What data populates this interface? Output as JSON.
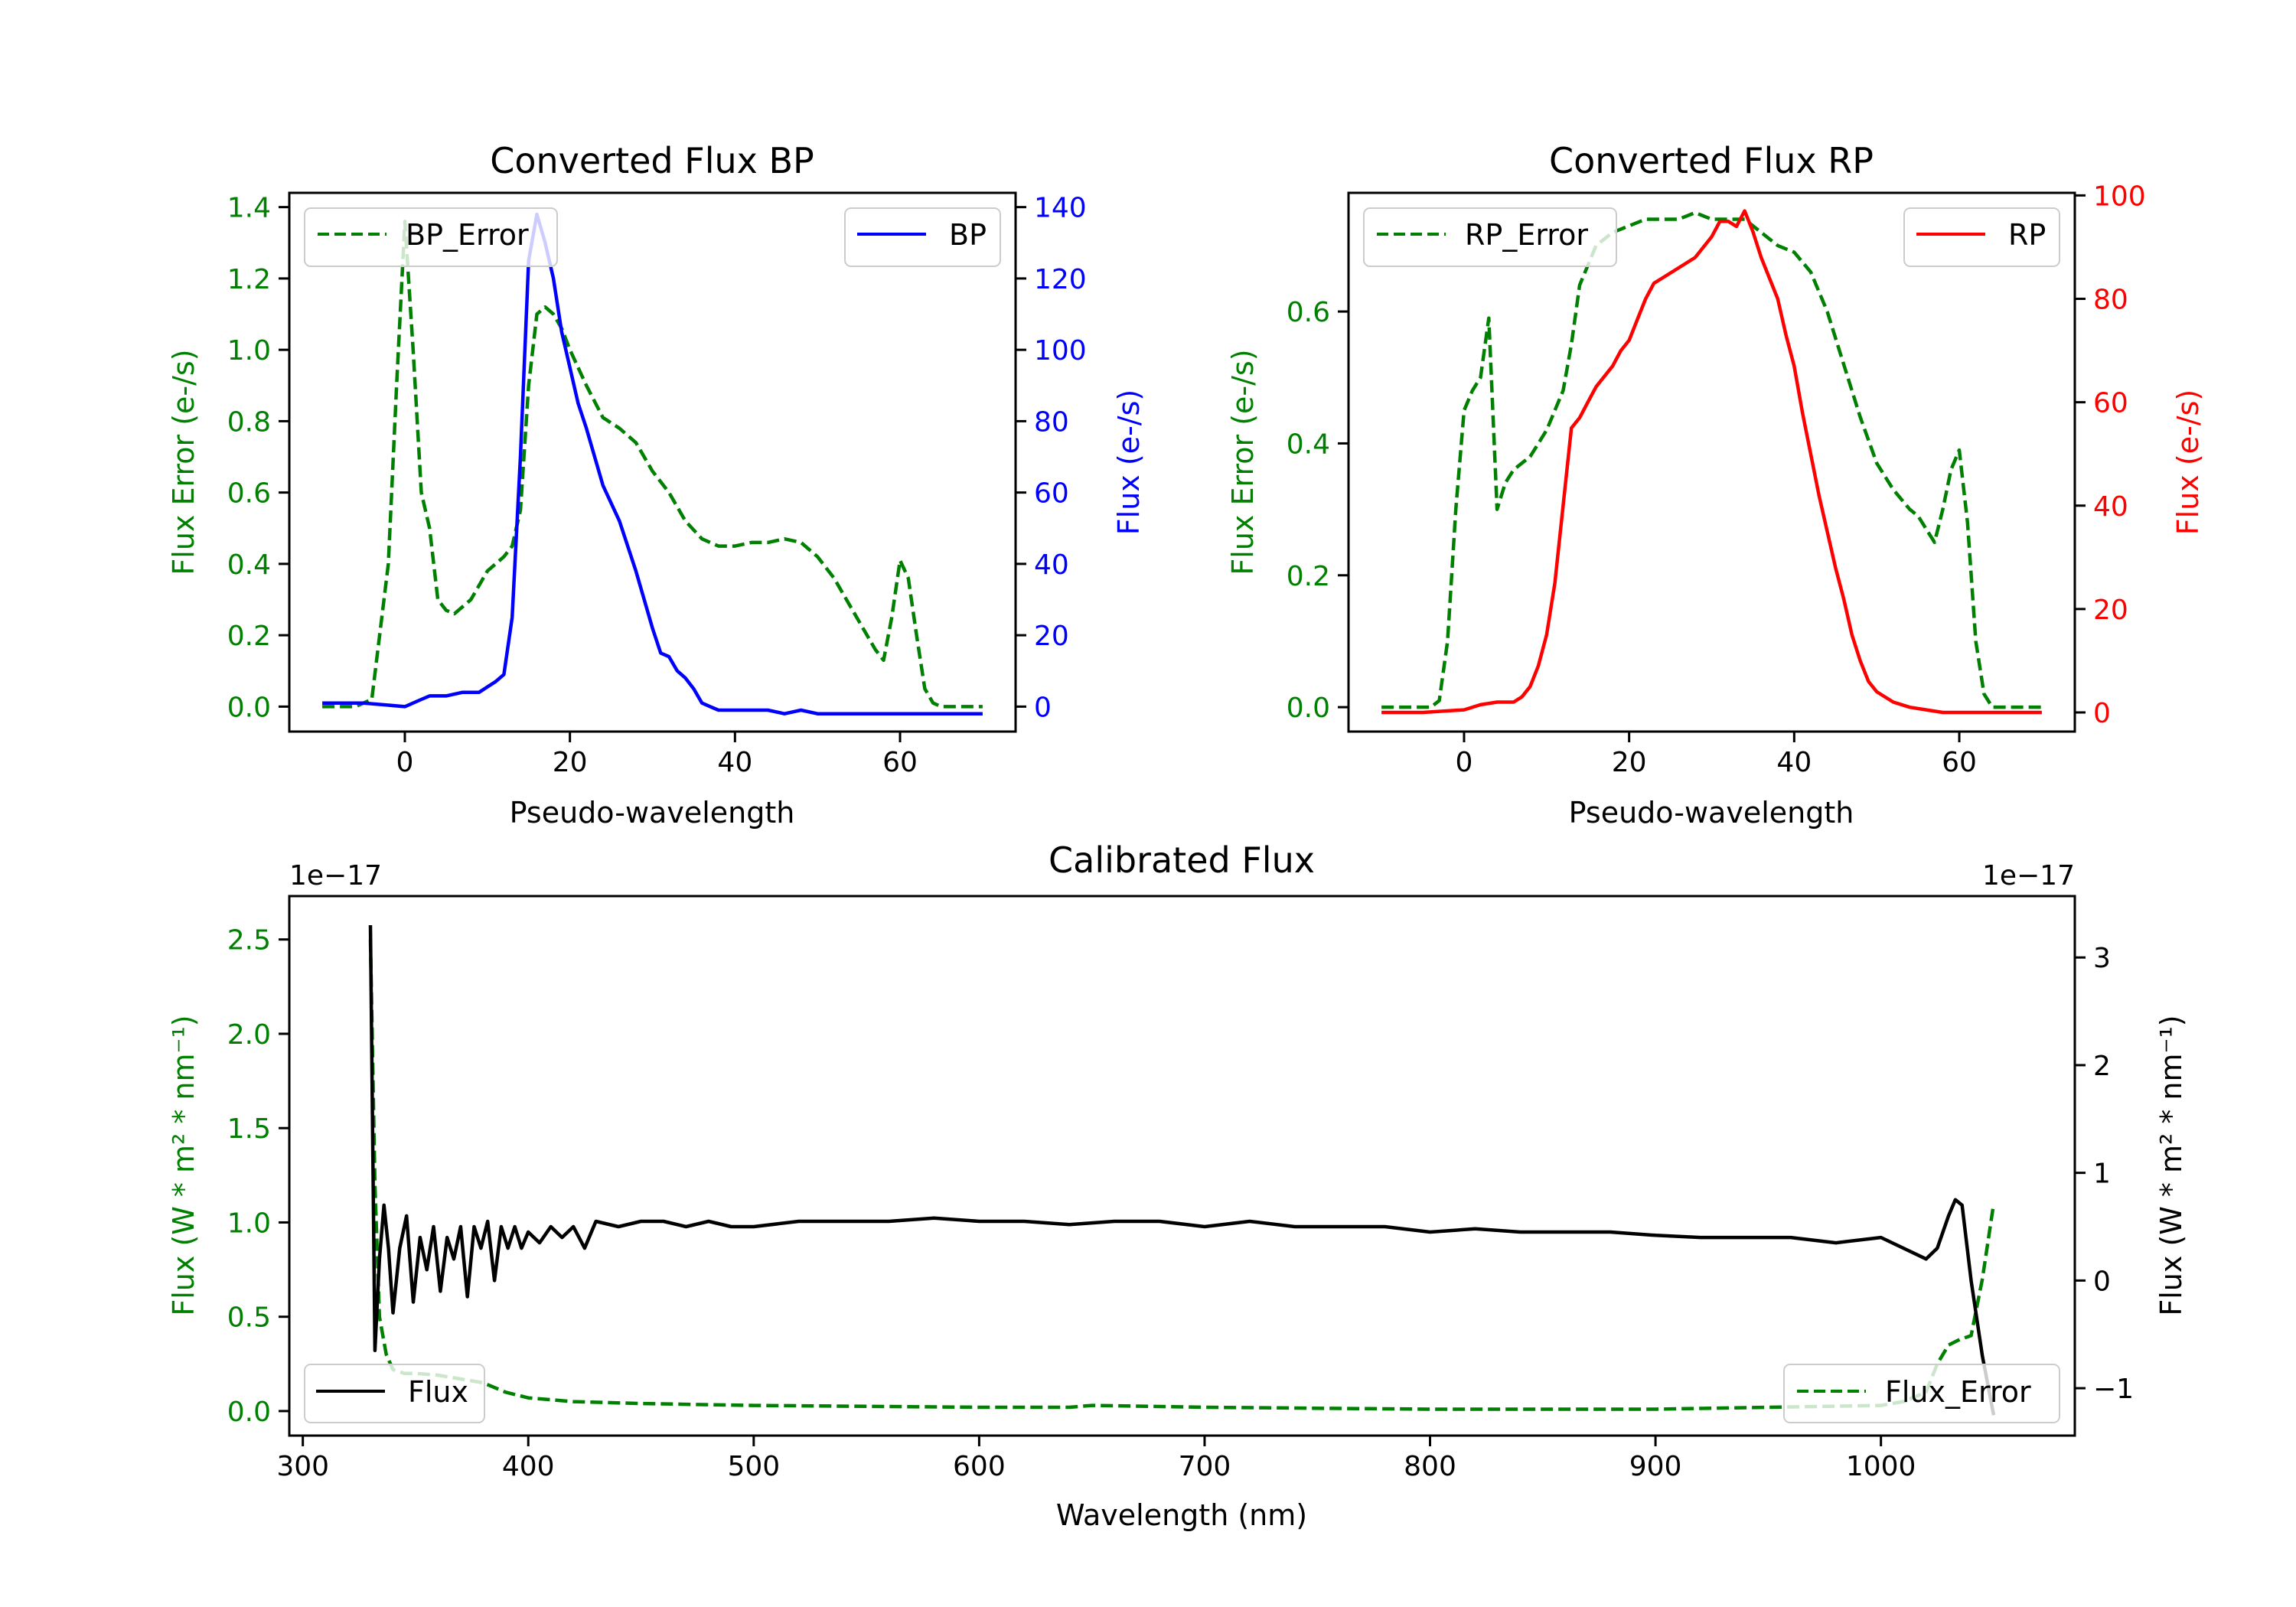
{
  "chart_data": [
    {
      "type": "line",
      "title": "Converted Flux BP",
      "xlabel": "Pseudo-wavelength",
      "ylabel_left": "Flux Error (e-/s)",
      "ylabel_right": "Flux (e-/s)",
      "xlim": [
        -14,
        74
      ],
      "ylim_left": [
        -0.07,
        1.44
      ],
      "ylim_right": [
        -7,
        144
      ],
      "xticks": [
        "0",
        "20",
        "40",
        "60"
      ],
      "xtick_values": [
        0,
        20,
        40,
        60
      ],
      "yticks_left": [
        "0.0",
        "0.2",
        "0.4",
        "0.6",
        "0.8",
        "1.0",
        "1.2",
        "1.4"
      ],
      "yticks_left_values": [
        0,
        0.2,
        0.4,
        0.6,
        0.8,
        1.0,
        1.2,
        1.4
      ],
      "yticks_right": [
        "0",
        "20",
        "40",
        "60",
        "80",
        "100",
        "120",
        "140"
      ],
      "yticks_right_values": [
        0,
        20,
        40,
        60,
        80,
        100,
        120,
        140
      ],
      "left_axis_color": "#008000",
      "right_axis_color": "#0000ff",
      "legend_left": "BP_Error",
      "legend_right": "BP",
      "series": [
        {
          "name": "BP_Error",
          "axis": "left",
          "color": "#008000",
          "dash": true,
          "x": [
            -10,
            -6,
            -4,
            -2,
            -1,
            0,
            1,
            2,
            3,
            4,
            5,
            6,
            8,
            10,
            12,
            13,
            14,
            15,
            16,
            17,
            18,
            19,
            20,
            22,
            24,
            26,
            28,
            30,
            32,
            34,
            36,
            38,
            40,
            42,
            44,
            46,
            48,
            50,
            52,
            54,
            56,
            57,
            58,
            59,
            60,
            61,
            62,
            63,
            64,
            65,
            67,
            70
          ],
          "y": [
            0,
            0,
            0.02,
            0.4,
            0.9,
            1.36,
            1.0,
            0.6,
            0.5,
            0.3,
            0.27,
            0.26,
            0.3,
            0.38,
            0.42,
            0.45,
            0.55,
            0.9,
            1.1,
            1.12,
            1.1,
            1.06,
            1.0,
            0.9,
            0.81,
            0.78,
            0.74,
            0.66,
            0.6,
            0.52,
            0.47,
            0.45,
            0.45,
            0.46,
            0.46,
            0.47,
            0.46,
            0.42,
            0.36,
            0.28,
            0.2,
            0.16,
            0.13,
            0.25,
            0.41,
            0.36,
            0.2,
            0.05,
            0.01,
            0,
            0,
            0
          ]
        },
        {
          "name": "BP",
          "axis": "right",
          "color": "#0000ff",
          "dash": false,
          "x": [
            -10,
            -5,
            0,
            2,
            3,
            5,
            7,
            9,
            11,
            12,
            13,
            14,
            15,
            16,
            17,
            18,
            19,
            20,
            21,
            22,
            23,
            24,
            26,
            28,
            30,
            31,
            32,
            33,
            34,
            35,
            36,
            37,
            38,
            40,
            42,
            44,
            46,
            48,
            50,
            52,
            55,
            58,
            60,
            65,
            70
          ],
          "y": [
            1,
            1,
            0,
            2,
            3,
            3,
            4,
            4,
            7,
            9,
            25,
            70,
            125,
            138,
            130,
            120,
            105,
            95,
            85,
            78,
            70,
            62,
            52,
            38,
            22,
            15,
            14,
            10,
            8,
            5,
            1,
            0,
            -1,
            -1,
            -1,
            -1,
            -2,
            -1,
            -2,
            -2,
            -2,
            -2,
            -2,
            -2,
            -2
          ]
        }
      ]
    },
    {
      "type": "line",
      "title": "Converted Flux RP",
      "xlabel": "Pseudo-wavelength",
      "ylabel_left": "Flux Error (e-/s)",
      "ylabel_right": "Flux (e-/s)",
      "xlim": [
        -14,
        74
      ],
      "ylim_left": [
        -0.037,
        0.78
      ],
      "ylim_right": [
        -3.7,
        100.5
      ],
      "xticks": [
        "0",
        "20",
        "40",
        "60"
      ],
      "xtick_values": [
        0,
        20,
        40,
        60
      ],
      "yticks_left": [
        "0.0",
        "0.2",
        "0.4",
        "0.6"
      ],
      "yticks_left_values": [
        0,
        0.2,
        0.4,
        0.6
      ],
      "yticks_right": [
        "0",
        "20",
        "40",
        "60",
        "80",
        "100"
      ],
      "yticks_right_values": [
        0,
        20,
        40,
        60,
        80,
        100
      ],
      "left_axis_color": "#008000",
      "right_axis_color": "#ff0000",
      "legend_left": "RP_Error",
      "legend_right": "RP",
      "series": [
        {
          "name": "RP_Error",
          "axis": "left",
          "color": "#008000",
          "dash": true,
          "x": [
            -10,
            -4,
            -3,
            -2,
            -1,
            0,
            1,
            2,
            3,
            4,
            5,
            6,
            8,
            10,
            12,
            13,
            14,
            16,
            18,
            20,
            22,
            24,
            26,
            28,
            30,
            32,
            34,
            36,
            38,
            40,
            42,
            44,
            46,
            48,
            50,
            52,
            54,
            55,
            56,
            57,
            58,
            59,
            60,
            61,
            62,
            63,
            64,
            65,
            70
          ],
          "y": [
            0,
            0,
            0.01,
            0.1,
            0.3,
            0.45,
            0.48,
            0.5,
            0.59,
            0.3,
            0.34,
            0.36,
            0.38,
            0.42,
            0.48,
            0.55,
            0.64,
            0.7,
            0.72,
            0.73,
            0.74,
            0.74,
            0.74,
            0.75,
            0.74,
            0.74,
            0.74,
            0.72,
            0.7,
            0.69,
            0.66,
            0.6,
            0.52,
            0.44,
            0.37,
            0.33,
            0.3,
            0.29,
            0.27,
            0.25,
            0.3,
            0.36,
            0.39,
            0.28,
            0.1,
            0.02,
            0,
            0,
            0
          ]
        },
        {
          "name": "RP",
          "axis": "right",
          "color": "#ff0000",
          "dash": false,
          "x": [
            -10,
            -5,
            0,
            2,
            4,
            6,
            7,
            8,
            9,
            10,
            11,
            12,
            13,
            14,
            15,
            16,
            17,
            18,
            19,
            20,
            21,
            22,
            23,
            24,
            26,
            28,
            30,
            31,
            32,
            33,
            34,
            35,
            36,
            37,
            38,
            39,
            40,
            41,
            42,
            43,
            44,
            45,
            46,
            47,
            48,
            49,
            50,
            52,
            54,
            56,
            58,
            60,
            65,
            70
          ],
          "y": [
            0,
            0,
            0.5,
            1.5,
            2,
            2,
            3,
            5,
            9,
            15,
            25,
            40,
            55,
            57,
            60,
            63,
            65,
            67,
            70,
            72,
            76,
            80,
            83,
            84,
            86,
            88,
            92,
            95,
            95,
            94,
            97,
            93,
            88,
            84,
            80,
            73,
            67,
            58,
            50,
            42,
            35,
            28,
            22,
            15,
            10,
            6,
            4,
            2,
            1,
            0.5,
            0,
            0,
            0,
            0
          ]
        }
      ]
    },
    {
      "type": "line",
      "title": "Calibrated Flux",
      "xlabel": "Wavelength (nm)",
      "ylabel_left": "Flux (W * m² * nm⁻¹)",
      "ylabel_right": "Flux (W * m² * nm⁻¹)",
      "offset_left": "1e−17",
      "offset_right": "1e−17",
      "xlim": [
        294,
        1086
      ],
      "ylim_left": [
        -0.13,
        2.73
      ],
      "ylim_right": [
        -1.44,
        3.57
      ],
      "xticks": [
        "300",
        "400",
        "500",
        "600",
        "700",
        "800",
        "900",
        "1000"
      ],
      "xtick_values": [
        300,
        400,
        500,
        600,
        700,
        800,
        900,
        1000
      ],
      "yticks_left": [
        "0.0",
        "0.5",
        "1.0",
        "1.5",
        "2.0",
        "2.5"
      ],
      "yticks_left_values": [
        0,
        0.5,
        1.0,
        1.5,
        2.0,
        2.5
      ],
      "yticks_right": [
        "−1",
        "0",
        "1",
        "2",
        "3"
      ],
      "yticks_right_values": [
        -1,
        0,
        1,
        2,
        3
      ],
      "left_axis_color": "#008000",
      "right_axis_color": "#000000",
      "legend_left": "Flux",
      "legend_right": "Flux_Error",
      "series": [
        {
          "name": "Flux_Error",
          "axis": "left",
          "color": "#008000",
          "dash": true,
          "x": [
            330,
            332,
            334,
            337,
            340,
            345,
            350,
            360,
            370,
            380,
            390,
            400,
            420,
            450,
            500,
            600,
            640,
            650,
            700,
            800,
            900,
            950,
            1000,
            1010,
            1020,
            1025,
            1030,
            1035,
            1040,
            1045,
            1050
          ],
          "y": [
            2.5,
            1.2,
            0.5,
            0.3,
            0.22,
            0.2,
            0.2,
            0.19,
            0.17,
            0.15,
            0.1,
            0.07,
            0.05,
            0.04,
            0.03,
            0.02,
            0.02,
            0.03,
            0.02,
            0.01,
            0.01,
            0.02,
            0.03,
            0.05,
            0.1,
            0.25,
            0.35,
            0.38,
            0.4,
            0.7,
            1.1
          ]
        },
        {
          "name": "Flux",
          "axis": "right",
          "color": "#000000",
          "dash": false,
          "x": [
            330,
            332,
            334,
            336,
            338,
            340,
            343,
            346,
            349,
            352,
            355,
            358,
            361,
            364,
            367,
            370,
            373,
            376,
            379,
            382,
            385,
            388,
            391,
            394,
            397,
            400,
            405,
            410,
            415,
            420,
            425,
            430,
            440,
            450,
            460,
            470,
            480,
            490,
            500,
            520,
            540,
            560,
            580,
            600,
            620,
            640,
            660,
            680,
            700,
            720,
            740,
            760,
            780,
            800,
            820,
            840,
            860,
            880,
            900,
            920,
            940,
            960,
            980,
            1000,
            1010,
            1020,
            1025,
            1030,
            1033,
            1036,
            1040,
            1045,
            1050
          ],
          "y": [
            3.3,
            -0.65,
            0.2,
            0.7,
            0.3,
            -0.3,
            0.3,
            0.6,
            -0.2,
            0.4,
            0.1,
            0.5,
            -0.1,
            0.4,
            0.2,
            0.5,
            -0.15,
            0.5,
            0.3,
            0.55,
            0.0,
            0.5,
            0.3,
            0.5,
            0.3,
            0.45,
            0.35,
            0.5,
            0.4,
            0.5,
            0.3,
            0.55,
            0.5,
            0.55,
            0.55,
            0.5,
            0.55,
            0.5,
            0.5,
            0.55,
            0.55,
            0.55,
            0.58,
            0.55,
            0.55,
            0.52,
            0.55,
            0.55,
            0.5,
            0.55,
            0.5,
            0.5,
            0.5,
            0.45,
            0.48,
            0.45,
            0.45,
            0.45,
            0.42,
            0.4,
            0.4,
            0.4,
            0.35,
            0.4,
            0.3,
            0.2,
            0.3,
            0.6,
            0.75,
            0.7,
            0.0,
            -0.7,
            -1.25
          ]
        }
      ]
    }
  ]
}
